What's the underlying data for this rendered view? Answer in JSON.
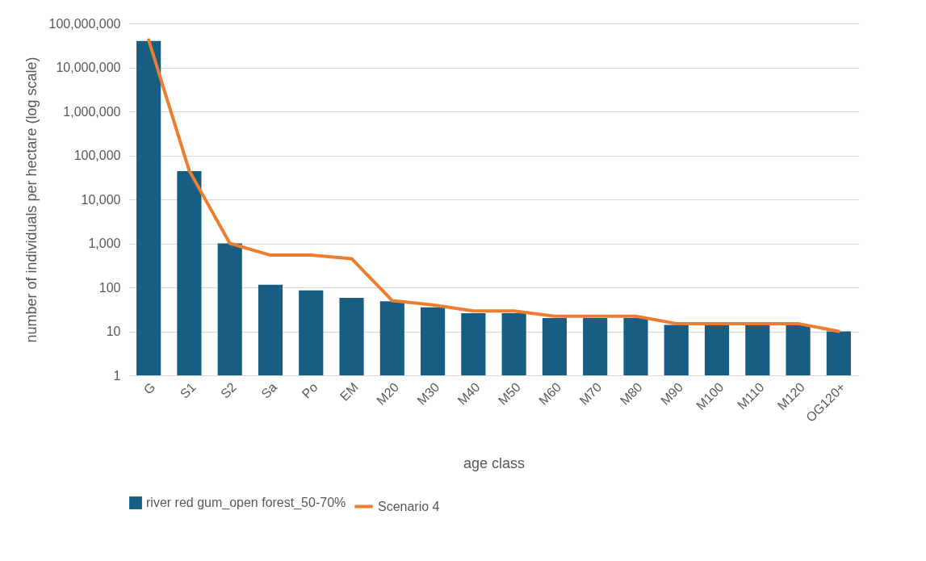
{
  "chart_data": {
    "type": "bar",
    "xlabel": "age class",
    "ylabel": "number of individuals per hectare (log scale)",
    "categories": [
      "G",
      "S1",
      "S2",
      "Sa",
      "Po",
      "EM",
      "M20",
      "M30",
      "M40",
      "M50",
      "M60",
      "M70",
      "M80",
      "M90",
      "M100",
      "M110",
      "M120",
      "OG120+"
    ],
    "series": [
      {
        "name": "river red gum_open forest_50-70%",
        "color": "#175e82",
        "values": [
          40000000,
          44000,
          1000,
          115,
          85,
          58,
          48,
          35,
          26,
          26,
          20,
          20,
          20,
          14,
          14,
          14,
          14,
          10
        ]
      },
      {
        "name": "Scenario 4",
        "type": "line",
        "color": "#ed7d31",
        "values": [
          42000000,
          45000,
          1000,
          540,
          540,
          450,
          50,
          40,
          29,
          29,
          22,
          22,
          22,
          15,
          15,
          15,
          15,
          10
        ]
      }
    ],
    "log": true,
    "ylim": [
      1,
      100000000
    ],
    "yticks": [
      1,
      10,
      100,
      {
        "value": 1000,
        "label": "1,000"
      },
      {
        "value": 10000,
        "label": "10,000"
      },
      {
        "value": 100000,
        "label": "100,000"
      },
      {
        "value": 1000000,
        "label": "1,000,000"
      },
      {
        "value": 10000000,
        "label": "10,000,000"
      },
      {
        "value": 100000000,
        "label": "100,000,000"
      }
    ],
    "grid": "y",
    "legend": "bottom"
  }
}
